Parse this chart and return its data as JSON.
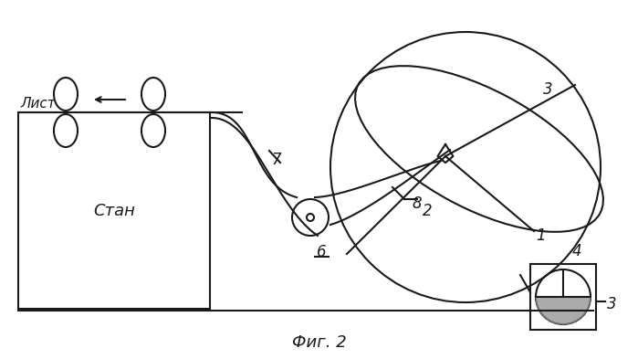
{
  "background": "#ffffff",
  "line_color": "#1a1a1a",
  "text_color": "#1a1a1a",
  "lw": 1.5,
  "labels": {
    "stan": "Стан",
    "list": "Лист",
    "fig": "Фиг. 2",
    "num1": "1",
    "num2": "2",
    "num3_main": "3",
    "num3_small": "3",
    "num4": "4",
    "num6": "6",
    "num7": "7",
    "num8": "8"
  }
}
